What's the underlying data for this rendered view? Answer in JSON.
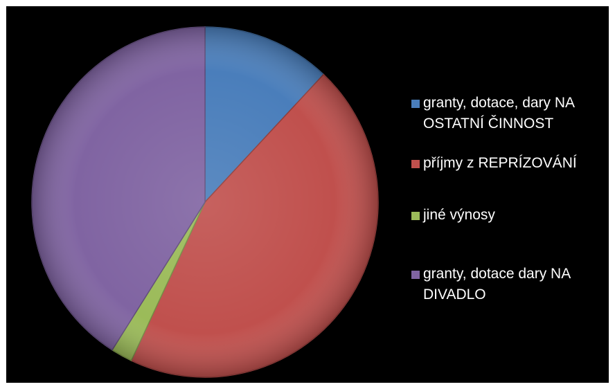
{
  "chart_data": {
    "type": "pie",
    "title": "",
    "categories": [
      "granty, dotace, dary NA OSTATNÍ ČINNOST",
      "příjmy z REPRÍZOVÁNÍ",
      "jiné výnosy",
      "granty, dotace dary NA DIVADLO"
    ],
    "values": [
      12,
      45,
      2,
      41
    ],
    "colors": [
      "#4a7ebb",
      "#c0504d",
      "#9bbb59",
      "#8064a2"
    ],
    "legend_position": "right"
  }
}
